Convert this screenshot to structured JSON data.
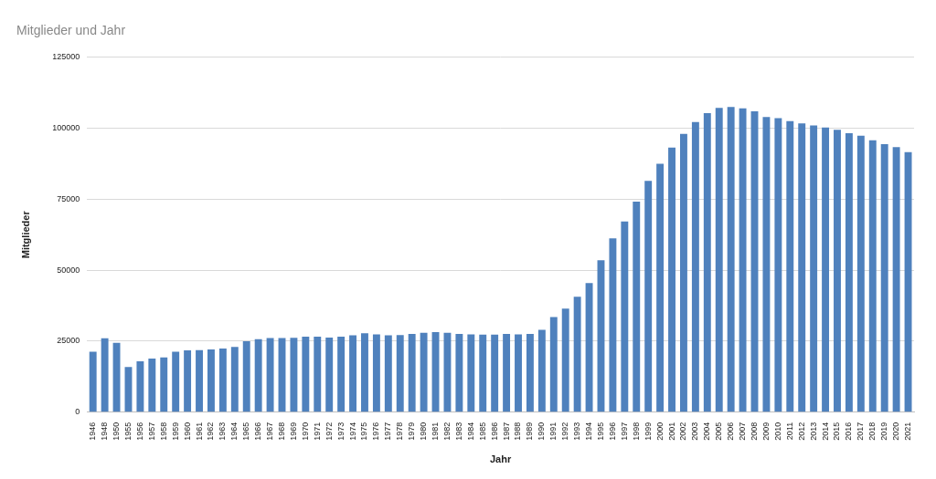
{
  "chart_data": {
    "type": "bar",
    "title": "Mitglieder und Jahr",
    "x_label": "Jahr",
    "y_label": "Mitglieder",
    "categories": [
      "1946",
      "1948",
      "1950",
      "1955",
      "1956",
      "1957",
      "1958",
      "1959",
      "1960",
      "1961",
      "1962",
      "1963",
      "1964",
      "1965",
      "1966",
      "1967",
      "1968",
      "1969",
      "1970",
      "1971",
      "1972",
      "1973",
      "1974",
      "1975",
      "1976",
      "1977",
      "1978",
      "1979",
      "1980",
      "1981",
      "1982",
      "1983",
      "1984",
      "1985",
      "1986",
      "1987",
      "1988",
      "1989",
      "1990",
      "1991",
      "1992",
      "1993",
      "1994",
      "1995",
      "1996",
      "1997",
      "1998",
      "1999",
      "2000",
      "2001",
      "2002",
      "2003",
      "2004",
      "2005",
      "2006",
      "2007",
      "2008",
      "2009",
      "2010",
      "2011",
      "2012",
      "2013",
      "2014",
      "2015",
      "2016",
      "2017",
      "2018",
      "2019",
      "2020",
      "2021"
    ],
    "values": [
      21300,
      26000,
      24400,
      15900,
      17900,
      18900,
      19300,
      21300,
      21800,
      21900,
      22100,
      22400,
      23000,
      25000,
      25700,
      26100,
      26100,
      26200,
      26600,
      26600,
      26300,
      26600,
      27100,
      27800,
      27400,
      27100,
      27200,
      27600,
      28000,
      28200,
      28000,
      27600,
      27400,
      27300,
      27300,
      27600,
      27400,
      27600,
      29000,
      33500,
      36500,
      40700,
      45500,
      53500,
      61200,
      67200,
      74200,
      81500,
      87500,
      93200,
      98000,
      102200,
      105300,
      107200,
      107500,
      107000,
      106000,
      104000,
      103600,
      102500,
      101700,
      101000,
      100300,
      99500,
      98300,
      97400,
      95800,
      94400,
      93400,
      91600
    ],
    "color": "#4f81bd",
    "ylim": [
      0,
      125000
    ],
    "yticks": [
      0,
      25000,
      50000,
      75000,
      100000,
      125000
    ],
    "grid": true
  }
}
